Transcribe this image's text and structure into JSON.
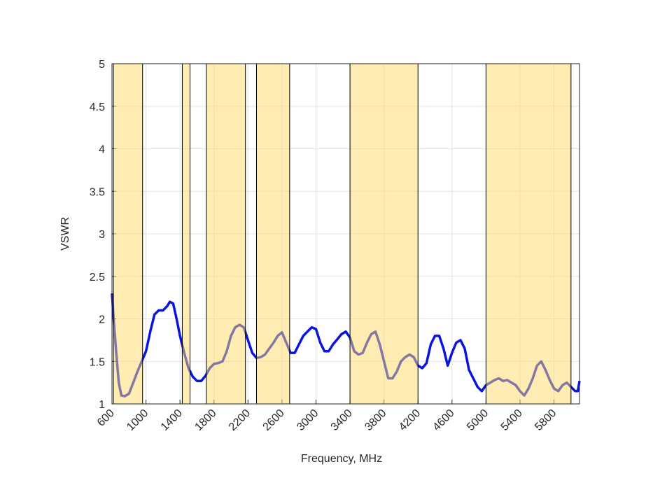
{
  "chart_data": {
    "type": "line",
    "xlabel": "Frequency, MHz",
    "ylabel": "VSWR",
    "x": [
      600,
      620,
      650,
      680,
      710,
      750,
      800,
      850,
      900,
      950,
      1000,
      1050,
      1100,
      1150,
      1200,
      1250,
      1280,
      1320,
      1360,
      1400,
      1450,
      1500,
      1550,
      1600,
      1650,
      1700,
      1750,
      1800,
      1850,
      1900,
      1950,
      2000,
      2050,
      2100,
      2150,
      2200,
      2250,
      2300,
      2350,
      2400,
      2450,
      2500,
      2550,
      2600,
      2650,
      2700,
      2750,
      2800,
      2850,
      2900,
      2950,
      3000,
      3050,
      3100,
      3150,
      3200,
      3250,
      3300,
      3350,
      3400,
      3450,
      3500,
      3550,
      3600,
      3650,
      3700,
      3750,
      3800,
      3850,
      3900,
      3950,
      4000,
      4050,
      4100,
      4150,
      4200,
      4250,
      4300,
      4350,
      4400,
      4450,
      4500,
      4550,
      4600,
      4650,
      4700,
      4750,
      4800,
      4850,
      4900,
      4950,
      5000,
      5050,
      5100,
      5150,
      5200,
      5250,
      5300,
      5350,
      5400,
      5450,
      5500,
      5550,
      5600,
      5650,
      5700,
      5750,
      5800,
      5850,
      5900,
      5950,
      6000,
      6050,
      6080,
      6100
    ],
    "values": [
      2.3,
      2.0,
      1.6,
      1.25,
      1.1,
      1.09,
      1.12,
      1.25,
      1.38,
      1.5,
      1.62,
      1.85,
      2.05,
      2.1,
      2.1,
      2.15,
      2.2,
      2.18,
      2.0,
      1.8,
      1.6,
      1.42,
      1.32,
      1.27,
      1.27,
      1.33,
      1.42,
      1.47,
      1.48,
      1.5,
      1.62,
      1.8,
      1.9,
      1.93,
      1.9,
      1.75,
      1.6,
      1.54,
      1.55,
      1.58,
      1.65,
      1.72,
      1.8,
      1.84,
      1.72,
      1.6,
      1.6,
      1.7,
      1.8,
      1.85,
      1.9,
      1.88,
      1.72,
      1.62,
      1.62,
      1.7,
      1.76,
      1.82,
      1.85,
      1.78,
      1.62,
      1.58,
      1.6,
      1.72,
      1.82,
      1.85,
      1.7,
      1.5,
      1.3,
      1.3,
      1.38,
      1.5,
      1.55,
      1.58,
      1.55,
      1.45,
      1.42,
      1.48,
      1.7,
      1.8,
      1.8,
      1.65,
      1.45,
      1.6,
      1.72,
      1.75,
      1.65,
      1.4,
      1.3,
      1.2,
      1.15,
      1.22,
      1.25,
      1.28,
      1.3,
      1.27,
      1.28,
      1.25,
      1.22,
      1.15,
      1.1,
      1.18,
      1.3,
      1.45,
      1.5,
      1.4,
      1.28,
      1.18,
      1.15,
      1.22,
      1.25,
      1.2,
      1.15,
      1.15,
      1.27
    ],
    "color": "#0a14e0",
    "bands": [
      [
        617,
        960
      ],
      [
        1427,
        1518
      ],
      [
        1710,
        2170
      ],
      [
        2300,
        2690
      ],
      [
        3400,
        4200
      ],
      [
        5000,
        6000
      ]
    ],
    "band_color": "#ffd966",
    "xlim": [
      600,
      6100
    ],
    "xticks": [
      600,
      1000,
      1400,
      1800,
      2200,
      2600,
      3000,
      3400,
      3800,
      4200,
      4600,
      5000,
      5400,
      5800
    ],
    "ylim": [
      1,
      5
    ],
    "yticks": [
      1,
      1.5,
      2,
      2.5,
      3,
      3.5,
      4,
      4.5,
      5
    ],
    "grid": true
  }
}
